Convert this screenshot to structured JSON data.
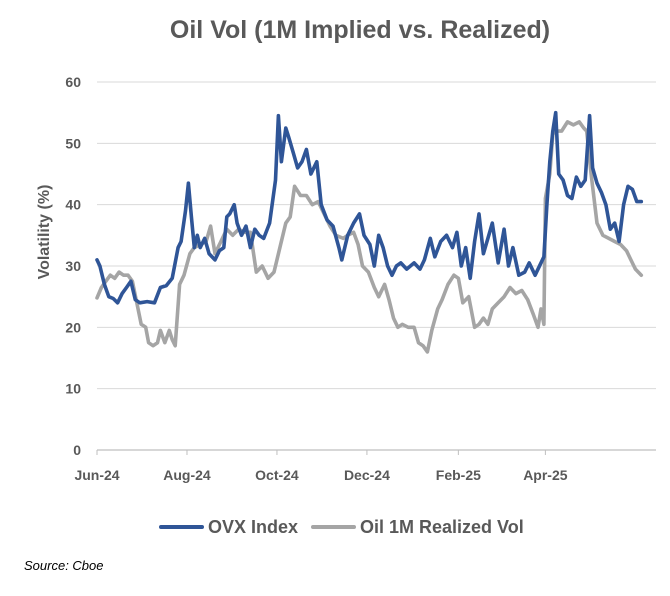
{
  "chart_data": {
    "type": "line",
    "title": "Oil Vol (1M Implied vs. Realized)",
    "ylabel": "Volatility (%)",
    "xlabel": "",
    "ylim": [
      0,
      60
    ],
    "yticks": [
      0,
      10,
      20,
      30,
      40,
      50,
      60
    ],
    "xlim": [
      "2024-06-01",
      "2025-06-15"
    ],
    "xticks": [
      {
        "date": "2024-06-01",
        "label": "Jun-24"
      },
      {
        "date": "2024-08-01",
        "label": "Aug-24"
      },
      {
        "date": "2024-10-01",
        "label": "Oct-24"
      },
      {
        "date": "2024-12-01",
        "label": "Dec-24"
      },
      {
        "date": "2025-02-01",
        "label": "Feb-25"
      },
      {
        "date": "2025-04-01",
        "label": "Apr-25"
      }
    ],
    "grid": "horizontal",
    "legend_position": "bottom",
    "source": "Source: Cboe",
    "series": [
      {
        "name": "OVX Index",
        "color": "#2F5597",
        "points": [
          [
            "2024-06-01",
            31.0
          ],
          [
            "2024-06-03",
            30.0
          ],
          [
            "2024-06-06",
            27.0
          ],
          [
            "2024-06-09",
            25.0
          ],
          [
            "2024-06-12",
            24.7
          ],
          [
            "2024-06-15",
            24.0
          ],
          [
            "2024-06-18",
            25.5
          ],
          [
            "2024-06-21",
            26.5
          ],
          [
            "2024-06-24",
            27.5
          ],
          [
            "2024-06-27",
            24.5
          ],
          [
            "2024-06-30",
            24.0
          ],
          [
            "2024-07-05",
            24.2
          ],
          [
            "2024-07-10",
            24.0
          ],
          [
            "2024-07-14",
            26.5
          ],
          [
            "2024-07-18",
            26.8
          ],
          [
            "2024-07-22",
            28.0
          ],
          [
            "2024-07-26",
            33.0
          ],
          [
            "2024-07-28",
            34.0
          ],
          [
            "2024-07-31",
            39.0
          ],
          [
            "2024-08-02",
            43.5
          ],
          [
            "2024-08-04",
            38.0
          ],
          [
            "2024-08-06",
            33.0
          ],
          [
            "2024-08-08",
            35.0
          ],
          [
            "2024-08-10",
            33.0
          ],
          [
            "2024-08-13",
            34.5
          ],
          [
            "2024-08-16",
            32.0
          ],
          [
            "2024-08-20",
            31.0
          ],
          [
            "2024-08-23",
            32.5
          ],
          [
            "2024-08-26",
            33.0
          ],
          [
            "2024-08-28",
            38.0
          ],
          [
            "2024-08-30",
            38.5
          ],
          [
            "2024-09-02",
            40.0
          ],
          [
            "2024-09-04",
            37.0
          ],
          [
            "2024-09-07",
            35.0
          ],
          [
            "2024-09-10",
            36.5
          ],
          [
            "2024-09-13",
            33.0
          ],
          [
            "2024-09-16",
            36.0
          ],
          [
            "2024-09-19",
            35.0
          ],
          [
            "2024-09-22",
            34.5
          ],
          [
            "2024-09-26",
            37.0
          ],
          [
            "2024-09-30",
            44.0
          ],
          [
            "2024-10-02",
            54.5
          ],
          [
            "2024-10-04",
            47.0
          ],
          [
            "2024-10-07",
            52.5
          ],
          [
            "2024-10-09",
            51.0
          ],
          [
            "2024-10-12",
            48.5
          ],
          [
            "2024-10-15",
            46.0
          ],
          [
            "2024-10-18",
            47.0
          ],
          [
            "2024-10-21",
            49.0
          ],
          [
            "2024-10-24",
            45.0
          ],
          [
            "2024-10-28",
            47.0
          ],
          [
            "2024-10-31",
            40.0
          ],
          [
            "2024-11-04",
            37.5
          ],
          [
            "2024-11-08",
            36.5
          ],
          [
            "2024-11-12",
            33.0
          ],
          [
            "2024-11-14",
            31.0
          ],
          [
            "2024-11-18",
            35.0
          ],
          [
            "2024-11-22",
            37.0
          ],
          [
            "2024-11-26",
            38.5
          ],
          [
            "2024-11-29",
            35.0
          ],
          [
            "2024-12-03",
            33.5
          ],
          [
            "2024-12-06",
            30.0
          ],
          [
            "2024-12-09",
            35.0
          ],
          [
            "2024-12-12",
            33.0
          ],
          [
            "2024-12-15",
            30.0
          ],
          [
            "2024-12-18",
            28.5
          ],
          [
            "2024-12-21",
            30.0
          ],
          [
            "2024-12-24",
            30.5
          ],
          [
            "2024-12-28",
            29.5
          ],
          [
            "2025-01-02",
            30.5
          ],
          [
            "2025-01-06",
            29.5
          ],
          [
            "2025-01-09",
            31.0
          ],
          [
            "2025-01-13",
            34.5
          ],
          [
            "2025-01-16",
            31.5
          ],
          [
            "2025-01-20",
            34.0
          ],
          [
            "2025-01-24",
            35.0
          ],
          [
            "2025-01-28",
            33.0
          ],
          [
            "2025-01-31",
            35.5
          ],
          [
            "2025-02-03",
            30.0
          ],
          [
            "2025-02-06",
            33.0
          ],
          [
            "2025-02-09",
            28.0
          ],
          [
            "2025-02-12",
            34.0
          ],
          [
            "2025-02-15",
            38.5
          ],
          [
            "2025-02-18",
            32.0
          ],
          [
            "2025-02-21",
            34.5
          ],
          [
            "2025-02-24",
            37.0
          ],
          [
            "2025-02-28",
            30.5
          ],
          [
            "2025-03-04",
            36.0
          ],
          [
            "2025-03-07",
            30.0
          ],
          [
            "2025-03-10",
            33.0
          ],
          [
            "2025-03-14",
            28.5
          ],
          [
            "2025-03-18",
            29.0
          ],
          [
            "2025-03-21",
            30.5
          ],
          [
            "2025-03-25",
            28.5
          ],
          [
            "2025-03-31",
            31.5
          ],
          [
            "2025-04-02",
            40.0
          ],
          [
            "2025-04-04",
            47.0
          ],
          [
            "2025-04-06",
            52.0
          ],
          [
            "2025-04-08",
            55.0
          ],
          [
            "2025-04-10",
            45.0
          ],
          [
            "2025-04-13",
            44.0
          ],
          [
            "2025-04-16",
            41.5
          ],
          [
            "2025-04-19",
            41.0
          ],
          [
            "2025-04-22",
            44.5
          ],
          [
            "2025-04-25",
            43.0
          ],
          [
            "2025-04-28",
            44.0
          ],
          [
            "2025-05-01",
            54.5
          ],
          [
            "2025-05-03",
            46.0
          ],
          [
            "2025-05-06",
            43.5
          ],
          [
            "2025-05-09",
            42.0
          ],
          [
            "2025-05-12",
            40.0
          ],
          [
            "2025-05-15",
            36.0
          ],
          [
            "2025-05-18",
            37.0
          ],
          [
            "2025-05-21",
            34.0
          ],
          [
            "2025-05-24",
            40.0
          ],
          [
            "2025-05-27",
            43.0
          ],
          [
            "2025-05-30",
            42.5
          ],
          [
            "2025-06-02",
            40.5
          ],
          [
            "2025-06-05",
            40.5
          ]
        ]
      },
      {
        "name": "Oil 1M Realized Vol",
        "color": "#A5A5A5",
        "points": [
          [
            "2024-06-01",
            24.8
          ],
          [
            "2024-06-04",
            26.5
          ],
          [
            "2024-06-07",
            27.5
          ],
          [
            "2024-06-10",
            28.5
          ],
          [
            "2024-06-13",
            28.0
          ],
          [
            "2024-06-16",
            29.0
          ],
          [
            "2024-06-19",
            28.5
          ],
          [
            "2024-06-22",
            28.5
          ],
          [
            "2024-06-25",
            27.5
          ],
          [
            "2024-06-28",
            24.0
          ],
          [
            "2024-07-01",
            20.5
          ],
          [
            "2024-07-04",
            20.0
          ],
          [
            "2024-07-06",
            17.5
          ],
          [
            "2024-07-09",
            17.0
          ],
          [
            "2024-07-12",
            17.5
          ],
          [
            "2024-07-14",
            19.5
          ],
          [
            "2024-07-17",
            17.5
          ],
          [
            "2024-07-20",
            19.5
          ],
          [
            "2024-07-22",
            18.0
          ],
          [
            "2024-07-24",
            17.0
          ],
          [
            "2024-07-27",
            27.0
          ],
          [
            "2024-07-30",
            28.5
          ],
          [
            "2024-08-03",
            32.0
          ],
          [
            "2024-08-06",
            33.0
          ],
          [
            "2024-08-10",
            33.5
          ],
          [
            "2024-08-14",
            34.0
          ],
          [
            "2024-08-17",
            36.5
          ],
          [
            "2024-08-20",
            32.0
          ],
          [
            "2024-08-24",
            34.0
          ],
          [
            "2024-08-28",
            36.0
          ],
          [
            "2024-09-01",
            35.0
          ],
          [
            "2024-09-05",
            36.0
          ],
          [
            "2024-09-09",
            35.5
          ],
          [
            "2024-09-13",
            35.5
          ],
          [
            "2024-09-17",
            29.0
          ],
          [
            "2024-09-21",
            30.0
          ],
          [
            "2024-09-25",
            28.0
          ],
          [
            "2024-09-29",
            29.0
          ],
          [
            "2024-10-03",
            33.0
          ],
          [
            "2024-10-07",
            37.0
          ],
          [
            "2024-10-10",
            38.0
          ],
          [
            "2024-10-13",
            43.0
          ],
          [
            "2024-10-17",
            41.5
          ],
          [
            "2024-10-21",
            41.5
          ],
          [
            "2024-10-25",
            40.0
          ],
          [
            "2024-10-29",
            40.5
          ],
          [
            "2024-11-02",
            38.5
          ],
          [
            "2024-11-06",
            36.5
          ],
          [
            "2024-11-10",
            35.0
          ],
          [
            "2024-11-15",
            34.5
          ],
          [
            "2024-11-18",
            35.0
          ],
          [
            "2024-11-22",
            35.5
          ],
          [
            "2024-11-25",
            33.5
          ],
          [
            "2024-11-28",
            30.0
          ],
          [
            "2024-12-02",
            29.0
          ],
          [
            "2024-12-06",
            26.5
          ],
          [
            "2024-12-09",
            25.0
          ],
          [
            "2024-12-13",
            27.0
          ],
          [
            "2024-12-16",
            24.5
          ],
          [
            "2024-12-19",
            21.5
          ],
          [
            "2024-12-22",
            20.0
          ],
          [
            "2024-12-25",
            20.5
          ],
          [
            "2024-12-29",
            20.0
          ],
          [
            "2025-01-02",
            20.0
          ],
          [
            "2025-01-05",
            17.5
          ],
          [
            "2025-01-08",
            17.0
          ],
          [
            "2025-01-11",
            16.0
          ],
          [
            "2025-01-14",
            19.5
          ],
          [
            "2025-01-18",
            23.0
          ],
          [
            "2025-01-21",
            24.5
          ],
          [
            "2025-01-25",
            27.0
          ],
          [
            "2025-01-29",
            28.5
          ],
          [
            "2025-02-01",
            28.0
          ],
          [
            "2025-02-04",
            24.0
          ],
          [
            "2025-02-08",
            25.0
          ],
          [
            "2025-02-12",
            20.0
          ],
          [
            "2025-02-15",
            20.5
          ],
          [
            "2025-02-18",
            21.5
          ],
          [
            "2025-02-21",
            20.5
          ],
          [
            "2025-02-24",
            23.0
          ],
          [
            "2025-02-28",
            24.0
          ],
          [
            "2025-03-04",
            25.0
          ],
          [
            "2025-03-08",
            26.5
          ],
          [
            "2025-03-12",
            25.5
          ],
          [
            "2025-03-16",
            26.0
          ],
          [
            "2025-03-20",
            24.5
          ],
          [
            "2025-03-24",
            22.0
          ],
          [
            "2025-03-27",
            20.0
          ],
          [
            "2025-03-29",
            23.0
          ],
          [
            "2025-03-31",
            20.5
          ],
          [
            "2025-04-01",
            41.0
          ],
          [
            "2025-04-04",
            45.0
          ],
          [
            "2025-04-06",
            51.5
          ],
          [
            "2025-04-08",
            52.0
          ],
          [
            "2025-04-12",
            52.0
          ],
          [
            "2025-04-16",
            53.5
          ],
          [
            "2025-04-20",
            53.0
          ],
          [
            "2025-04-24",
            53.5
          ],
          [
            "2025-04-27",
            52.5
          ],
          [
            "2025-04-29",
            52.0
          ],
          [
            "2025-05-02",
            45.0
          ],
          [
            "2025-05-06",
            37.0
          ],
          [
            "2025-05-10",
            35.0
          ],
          [
            "2025-05-14",
            34.5
          ],
          [
            "2025-05-18",
            34.0
          ],
          [
            "2025-05-22",
            33.5
          ],
          [
            "2025-05-26",
            32.5
          ],
          [
            "2025-05-29",
            31.0
          ],
          [
            "2025-06-01",
            29.5
          ],
          [
            "2025-06-03",
            29.0
          ],
          [
            "2025-06-05",
            28.5
          ]
        ]
      }
    ]
  }
}
